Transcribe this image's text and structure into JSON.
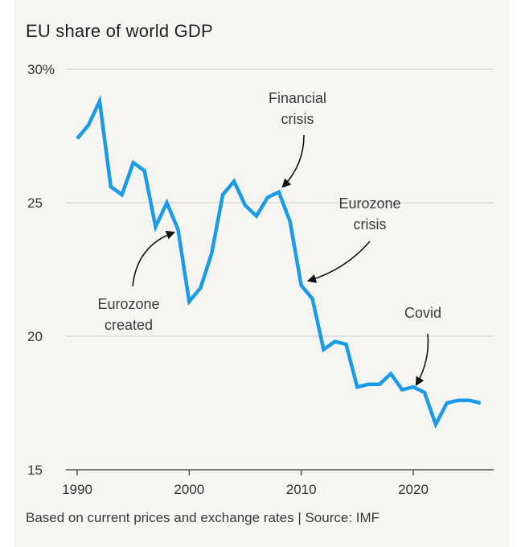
{
  "title": "EU share of world GDP",
  "footnote": "Based on current prices and exchange rates | Source: IMF",
  "colors": {
    "line": "#1a9bea",
    "grid": "#cfcfcf",
    "axis": "#555555",
    "background": "#f6f5f1",
    "text": "#333333"
  },
  "chart_data": {
    "type": "line",
    "title": "EU share of world GDP",
    "xlabel": "",
    "ylabel": "",
    "xlim": [
      1990,
      2026
    ],
    "ylim": [
      15,
      30
    ],
    "y_ticks": [
      {
        "value": 30,
        "label": "30%"
      },
      {
        "value": 25,
        "label": "25"
      },
      {
        "value": 20,
        "label": "20"
      },
      {
        "value": 15,
        "label": "15"
      }
    ],
    "x_ticks": [
      {
        "value": 1990,
        "label": "1990"
      },
      {
        "value": 2000,
        "label": "2000"
      },
      {
        "value": 2010,
        "label": "2010"
      },
      {
        "value": 2020,
        "label": "2020"
      }
    ],
    "grid": "horizontal",
    "series": [
      {
        "x": [
          1990,
          1991,
          1992,
          1993,
          1994,
          1995,
          1996,
          1997,
          1998,
          1999,
          2000,
          2001,
          2002,
          2003,
          2004,
          2005,
          2006,
          2007,
          2008,
          2009,
          2010,
          2011,
          2012,
          2013,
          2014,
          2015,
          2016,
          2017,
          2018,
          2019,
          2020,
          2021,
          2022,
          2023,
          2024,
          2025,
          2026
        ],
        "y": [
          27.4,
          27.9,
          28.8,
          25.6,
          25.3,
          26.5,
          26.2,
          24.1,
          25.0,
          24.0,
          21.3,
          21.8,
          23.1,
          25.3,
          25.8,
          24.9,
          24.5,
          25.2,
          25.4,
          24.3,
          21.9,
          21.4,
          19.5,
          19.8,
          19.7,
          18.1,
          18.2,
          18.2,
          18.6,
          18.0,
          18.1,
          17.9,
          16.7,
          17.5,
          17.6,
          17.6,
          17.5
        ]
      }
    ],
    "annotations": [
      {
        "lines": [
          "Financial",
          "crisis"
        ],
        "x": 2008,
        "y": 25.4
      },
      {
        "lines": [
          "Eurozone",
          "crisis"
        ],
        "x": 2010,
        "y": 21.9
      },
      {
        "lines": [
          "Eurozone",
          "created"
        ],
        "x": 1998,
        "y": 24.0
      },
      {
        "lines": [
          "Covid"
        ],
        "x": 2020,
        "y": 18.1
      }
    ]
  }
}
